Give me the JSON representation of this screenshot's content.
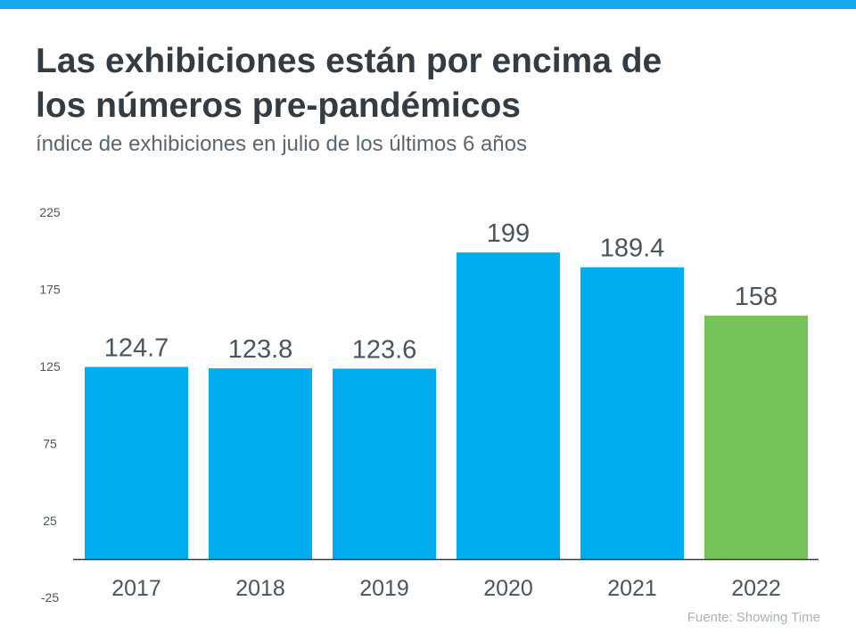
{
  "header": {
    "title_line1": "Las exhibiciones están por encima de",
    "title_line2": "los números pre-pandémicos",
    "subtitle": "índice de exhibiciones en julio de los últimos 6 años"
  },
  "source": "Fuente:  Showing Time",
  "chart_data": {
    "type": "bar",
    "categories": [
      "2017",
      "2018",
      "2019",
      "2020",
      "2021",
      "2022"
    ],
    "values": [
      124.7,
      123.8,
      123.6,
      199,
      189.4,
      158
    ],
    "value_labels": [
      "124.7",
      "123.8",
      "123.6",
      "199",
      "189.4",
      "158"
    ],
    "colors": [
      "#00aeef",
      "#00aeef",
      "#00aeef",
      "#00aeef",
      "#00aeef",
      "#74c45a"
    ],
    "yticks": [
      "225",
      "175",
      "125",
      "75",
      "25",
      "-25"
    ],
    "ylim": [
      -25,
      225
    ],
    "grid": false,
    "title": "Las exhibiciones están por encima de los números pre-pandémicos",
    "subtitle": "índice de exhibiciones en julio de los últimos 6 años"
  }
}
